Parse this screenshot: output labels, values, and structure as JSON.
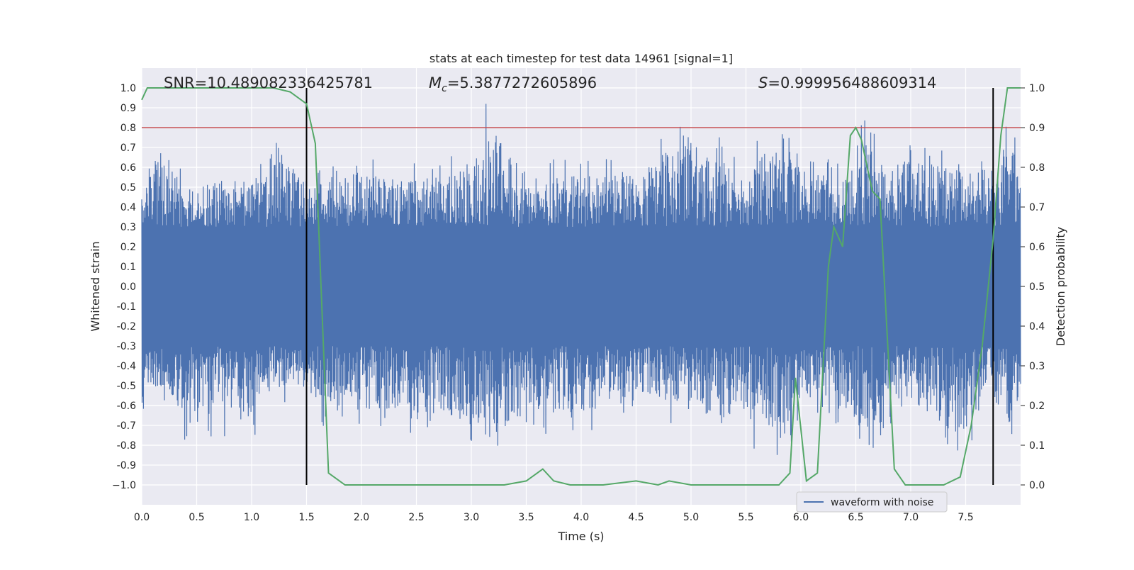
{
  "chart_data": {
    "type": "line",
    "title": "stats at each timestep for test data 14961 [signal=1]",
    "xlabel": "Time (s)",
    "ylabel": "Whitened strain",
    "y2label": "Detection probability",
    "xlim": [
      0.0,
      8.0
    ],
    "ylim": [
      -1.1,
      1.1
    ],
    "y2lim": [
      -0.05,
      1.05
    ],
    "grid": true,
    "x_ticks": [
      "0.0",
      "0.5",
      "1.0",
      "1.5",
      "2.0",
      "2.5",
      "3.0",
      "3.5",
      "4.0",
      "4.5",
      "5.0",
      "5.5",
      "6.0",
      "6.5",
      "7.0",
      "7.5"
    ],
    "y_ticks": [
      "1.0",
      "0.9",
      "0.8",
      "0.7",
      "0.6",
      "0.5",
      "0.4",
      "0.3",
      "0.2",
      "0.1",
      "0.0",
      "-0.1",
      "-0.2",
      "-0.3",
      "-0.4",
      "-0.5",
      "-0.6",
      "-0.7",
      "-0.8",
      "-0.9",
      "−1.0"
    ],
    "y2_ticks": [
      "1.0",
      "0.9",
      "0.8",
      "0.7",
      "0.6",
      "0.5",
      "0.4",
      "0.3",
      "0.2",
      "0.1",
      "0.0"
    ],
    "annotations": {
      "snr": "SNR=10.489082336425781",
      "mc_symbol": "M",
      "mc_sub": "c",
      "mc_value": "=5.3877272605896",
      "s_symbol": "S",
      "s_value": "=0.999956488609314"
    },
    "threshold_line": {
      "axis": "y2",
      "value": 0.9,
      "color": "#c44e52"
    },
    "event_lines": [
      1.5,
      7.75
    ],
    "legend": {
      "entries": [
        "waveform with noise"
      ],
      "placement": "lower-right"
    },
    "series": [
      {
        "name": "waveform with noise",
        "axis": "y",
        "color": "#4c72b0",
        "kind": "noisy-envelope",
        "envelope": {
          "x": [
            0.0,
            0.05,
            0.2,
            0.4,
            0.8,
            1.0,
            1.2,
            1.5,
            1.6,
            2.0,
            2.5,
            3.0,
            3.15,
            3.5,
            4.0,
            4.5,
            4.9,
            5.5,
            5.85,
            6.0,
            6.4,
            6.6,
            6.8,
            7.0,
            7.5,
            7.7,
            7.9,
            8.0
          ],
          "upper": [
            0.45,
            0.62,
            0.83,
            0.55,
            0.63,
            0.58,
            0.92,
            0.55,
            0.62,
            0.67,
            0.62,
            0.7,
            0.99,
            0.65,
            0.64,
            0.65,
            0.9,
            0.65,
            0.95,
            0.68,
            0.62,
            0.88,
            0.66,
            0.75,
            0.68,
            0.7,
            0.91,
            0.6
          ],
          "lower": [
            -0.8,
            -0.6,
            -0.62,
            -0.8,
            -0.76,
            -0.78,
            -0.6,
            -0.58,
            -0.7,
            -0.74,
            -0.76,
            -0.83,
            -0.95,
            -0.74,
            -0.76,
            -0.62,
            -0.72,
            -0.82,
            -0.9,
            -0.62,
            -0.76,
            -0.86,
            -0.7,
            -0.66,
            -0.97,
            -0.62,
            -0.83,
            -0.6
          ]
        }
      },
      {
        "name": "",
        "axis": "y2",
        "color": "#55a868",
        "x": [
          0.0,
          0.05,
          0.3,
          0.8,
          1.2,
          1.35,
          1.5,
          1.58,
          1.7,
          1.85,
          2.0,
          2.5,
          3.0,
          3.3,
          3.5,
          3.65,
          3.75,
          3.9,
          4.2,
          4.5,
          4.7,
          4.8,
          5.0,
          5.5,
          5.8,
          5.9,
          5.95,
          6.05,
          6.15,
          6.25,
          6.3,
          6.38,
          6.45,
          6.5,
          6.55,
          6.65,
          6.72,
          6.85,
          6.95,
          7.1,
          7.3,
          7.45,
          7.55,
          7.65,
          7.75,
          7.82,
          7.88,
          8.0
        ],
        "y": [
          0.97,
          1.0,
          1.0,
          1.0,
          1.0,
          0.99,
          0.96,
          0.86,
          0.03,
          0.0,
          0.0,
          0.0,
          0.0,
          0.0,
          0.01,
          0.04,
          0.01,
          0.0,
          0.0,
          0.01,
          0.0,
          0.01,
          0.0,
          0.0,
          0.0,
          0.03,
          0.27,
          0.01,
          0.03,
          0.55,
          0.65,
          0.6,
          0.88,
          0.9,
          0.87,
          0.74,
          0.72,
          0.04,
          0.0,
          0.0,
          0.0,
          0.02,
          0.15,
          0.35,
          0.62,
          0.88,
          1.0,
          1.0
        ]
      }
    ]
  }
}
